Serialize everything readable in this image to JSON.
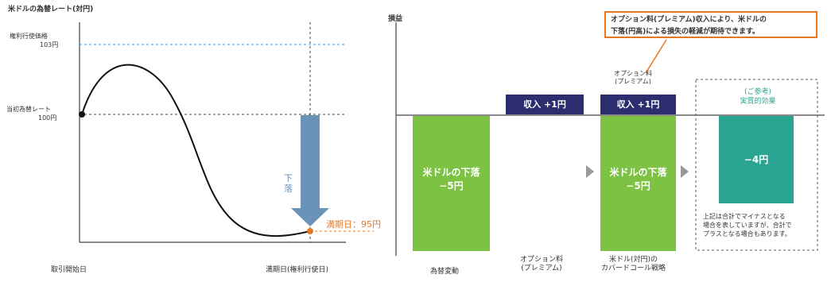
{
  "left_chart": {
    "title": "米ドルの為替レート(対円)",
    "strike_label_1": "権利行使価格",
    "strike_label_2": "103円",
    "initial_label_1": "当初為替レート",
    "initial_label_2": "100円",
    "drop_label": "下落",
    "maturity_value": "満期日：95円",
    "x_start": "取引開始日",
    "x_end": "満期日(権利行使日)"
  },
  "right_chart": {
    "title": "損益",
    "callout_line1": "オプション料(プレミアム)収入により、米ドルの",
    "callout_line2": "下落(円高)による損失の軽減が期待できます。",
    "premium_label_1": "オプション料",
    "premium_label_2": "(プレミアム)",
    "income_1": "収入 +1円",
    "income_2": "収入 +1円",
    "fx_loss_1a": "米ドルの下落",
    "fx_loss_1b": "−5円",
    "fx_loss_2a": "米ドルの下落",
    "fx_loss_2b": "−5円",
    "ref_label_1": "(ご参考)",
    "ref_label_2": "実質的効果",
    "net_value": "−4円",
    "note_1": "上記は合計でマイナスとなる",
    "note_2": "場合を表していますが、合計で",
    "note_3": "プラスとなる場合もあります。",
    "cat_1": "為替変動",
    "cat_2a": "オプション料",
    "cat_2b": "(プレミアム)",
    "cat_3a": "米ドル(対円)の",
    "cat_3b": "カバードコール戦略"
  },
  "colors": {
    "green": "#7dc242",
    "navy": "#2b2d6e",
    "teal": "#2aa592",
    "orange": "#e87722",
    "arrow_blue": "#6b93b8"
  }
}
